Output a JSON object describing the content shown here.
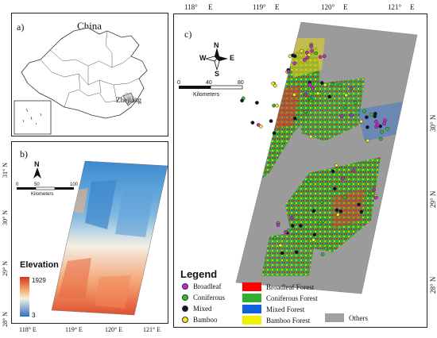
{
  "panel_a": {
    "label": "a)",
    "country_label": "China",
    "province_label": "Zhejiang"
  },
  "panel_b": {
    "label": "b)",
    "north_label": "N",
    "scale_ticks": [
      "0",
      "50",
      "100"
    ],
    "scale_unit": "Kilometers",
    "elevation_title": "Elevation",
    "elevation_max": "1929",
    "elevation_min": "3",
    "x_ticks": [
      "118° E",
      "119° E",
      "120° E",
      "121° E"
    ],
    "y_ticks": [
      "31° N",
      "30° N",
      "29° N",
      "28° N"
    ]
  },
  "panel_c": {
    "label": "c)",
    "compass": {
      "n": "N",
      "s": "S",
      "e": "E",
      "w": "W"
    },
    "scale_ticks": [
      "0",
      "40",
      "80"
    ],
    "scale_unit": "Kilometers",
    "x_ticks": [
      "118°",
      "E",
      "119°",
      "E",
      "120°",
      "E",
      "121°",
      "E"
    ],
    "y_ticks": [
      "30° N",
      "29° N",
      "28° N"
    ]
  },
  "legend": {
    "title": "Legend",
    "points": [
      {
        "label": "Broadleaf",
        "color": "#d020d0"
      },
      {
        "label": "Coniferous",
        "color": "#30c030"
      },
      {
        "label": "Mixed",
        "color": "#101030"
      },
      {
        "label": "Bamboo",
        "color": "#f0f020"
      }
    ],
    "classes": [
      {
        "label": "Broadleaf Forest",
        "color": "#ff0000"
      },
      {
        "label": "Coniferous Forest",
        "color": "#30b030"
      },
      {
        "label": "Mixed Forest",
        "color": "#1060e0"
      },
      {
        "label": "Bamboo Forest",
        "color": "#f0f000"
      },
      {
        "label": "Others",
        "color": "#a0a0a0"
      }
    ]
  }
}
